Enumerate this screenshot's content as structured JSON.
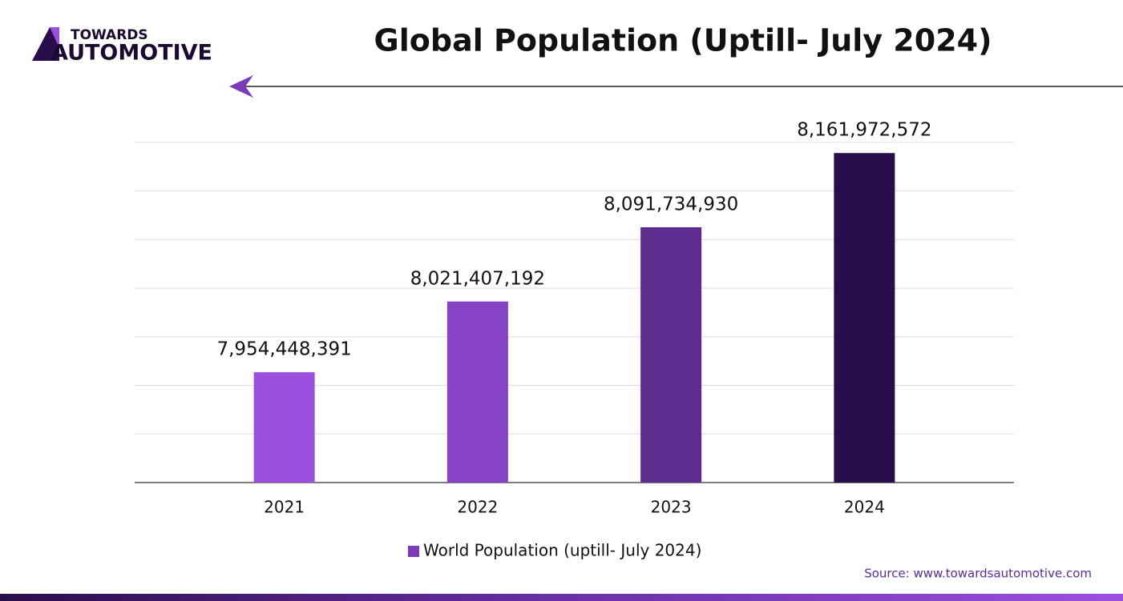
{
  "logo": {
    "top": "TOWARDS",
    "bottom": "AUTOMOTIVE"
  },
  "source": "Source: www.towardsautomotive.com",
  "chart_data": {
    "type": "bar",
    "title": "Global Population (Uptill- July 2024)",
    "categories": [
      "2021",
      "2022",
      "2023",
      "2024"
    ],
    "series": [
      {
        "name": "World Population (uptill- July 2024)",
        "color": "#7b3bb8",
        "colors": [
          "#9b50e0",
          "#8742c6",
          "#5e2b8e",
          "#2a0d4c"
        ],
        "values": [
          7954448391,
          8021407192,
          8091734930,
          8161972572
        ],
        "value_labels": [
          "7,954,448,391",
          "8,021,407,192",
          "8,091,734,930",
          "8,161,972,572"
        ]
      }
    ],
    "ylim": [
      7850000000,
      8172000000
    ],
    "yticks": [
      7850000000,
      7896000000,
      7942000000,
      7988000000,
      8034000000,
      8080000000,
      8126000000,
      8172000000
    ],
    "grid": true,
    "legend": "bottom"
  }
}
